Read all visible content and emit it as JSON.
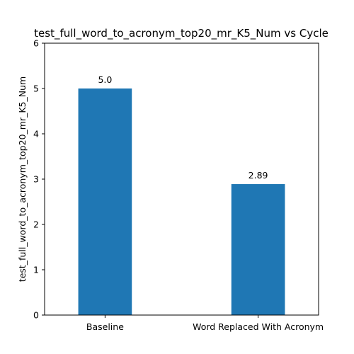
{
  "chart_data": {
    "type": "bar",
    "title": "test_full_word_to_acronym_top20_mr_K5_Num vs Cycle",
    "xlabel": "",
    "ylabel": "test_full_word_to_acronym_top20_mr_K5_Num",
    "categories": [
      "Baseline",
      "Word Replaced With Acronym"
    ],
    "values": [
      5.0,
      2.89
    ],
    "data_labels": [
      "5.0",
      "2.89"
    ],
    "ylim": [
      0,
      6
    ],
    "yticks": [
      0,
      1,
      2,
      3,
      4,
      5,
      6
    ],
    "grid": false,
    "bar_color": "#1f77b4"
  }
}
